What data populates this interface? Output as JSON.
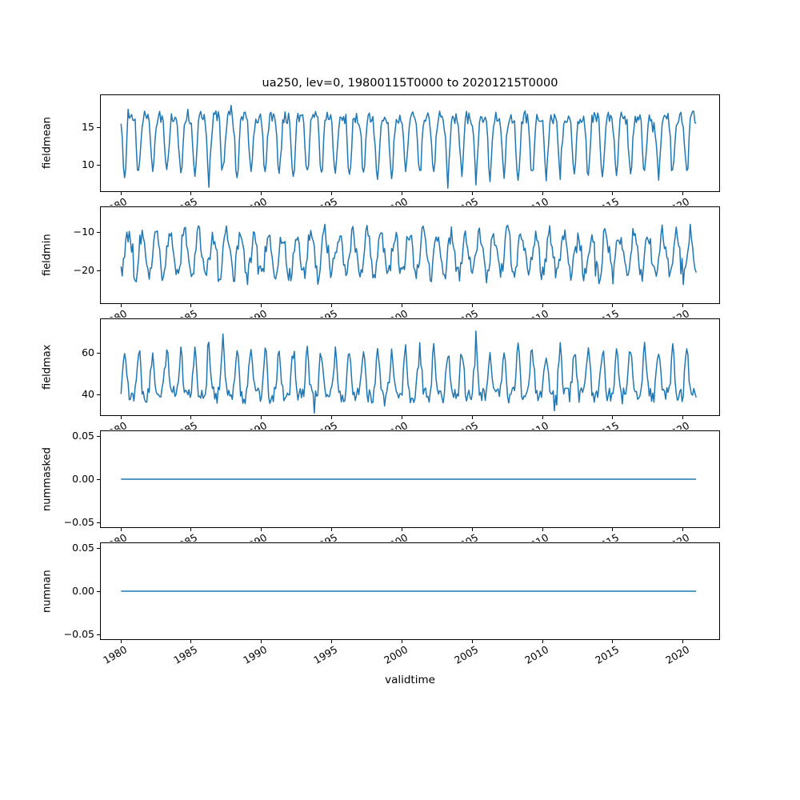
{
  "figure": {
    "background": "#ffffff"
  },
  "chart_data": {
    "type": "line",
    "title": "ua250, lev=0, 19800115T0000 to 20201215T0000",
    "xlabel": "validtime",
    "line_color": "#1f77b4",
    "grid": false,
    "legend": "none",
    "xlim": [
      1978.6,
      2022.6
    ],
    "x_start": 1980.0417,
    "x_end": 2020.9583,
    "points_per_year": 12,
    "x_ticks": [
      1980,
      1985,
      1990,
      1995,
      2000,
      2005,
      2010,
      2015,
      2020
    ],
    "x_tick_labels": [
      "1980",
      "1985",
      "1990",
      "1995",
      "2000",
      "2005",
      "2010",
      "2015",
      "2020"
    ],
    "x_tick_rotation_deg": 30,
    "series": [
      {
        "name": "fieldmean",
        "ylabel": "fieldmean",
        "ylim": [
          6.5,
          19.3
        ],
        "yticks": [
          15,
          10
        ],
        "ytick_labels": [
          "15",
          "10"
        ],
        "flat": false,
        "shape": "peaks_down",
        "mean": 13.6,
        "amplitude": 5.0,
        "noise": 0.85,
        "phase": 0.0,
        "approx_range": [
          8,
          18.5
        ]
      },
      {
        "name": "fieldmin",
        "ylabel": "fieldmin",
        "ylim": [
          -28.5,
          -3.5
        ],
        "yticks": [
          -10,
          -20
        ],
        "ytick_labels": [
          "−10",
          "−20"
        ],
        "flat": false,
        "shape": "sine",
        "mean": -15.8,
        "amplitude": 5.5,
        "noise": 2.4,
        "phase": 0.25,
        "approx_range": [
          -27,
          -6
        ]
      },
      {
        "name": "fieldmax",
        "ylabel": "fieldmax",
        "ylim": [
          30,
          76
        ],
        "yticks": [
          60,
          40
        ],
        "ytick_labels": [
          "60",
          "40"
        ],
        "flat": false,
        "shape": "peaks_up",
        "mean": 47.0,
        "amplitude": 14.0,
        "noise": 4.0,
        "phase": 0.0,
        "approx_range": [
          33,
          72
        ]
      },
      {
        "name": "nummasked",
        "ylabel": "nummasked",
        "ylim": [
          -0.056,
          0.056
        ],
        "yticks": [
          0.05,
          0.0,
          -0.05
        ],
        "ytick_labels": [
          "0.05",
          "0.00",
          "−0.05"
        ],
        "flat": true,
        "value": 0.0
      },
      {
        "name": "numnan",
        "ylabel": "numnan",
        "ylim": [
          -0.056,
          0.056
        ],
        "yticks": [
          0.05,
          0.0,
          -0.05
        ],
        "ytick_labels": [
          "0.05",
          "0.00",
          "−0.05"
        ],
        "flat": true,
        "value": 0.0
      }
    ]
  }
}
